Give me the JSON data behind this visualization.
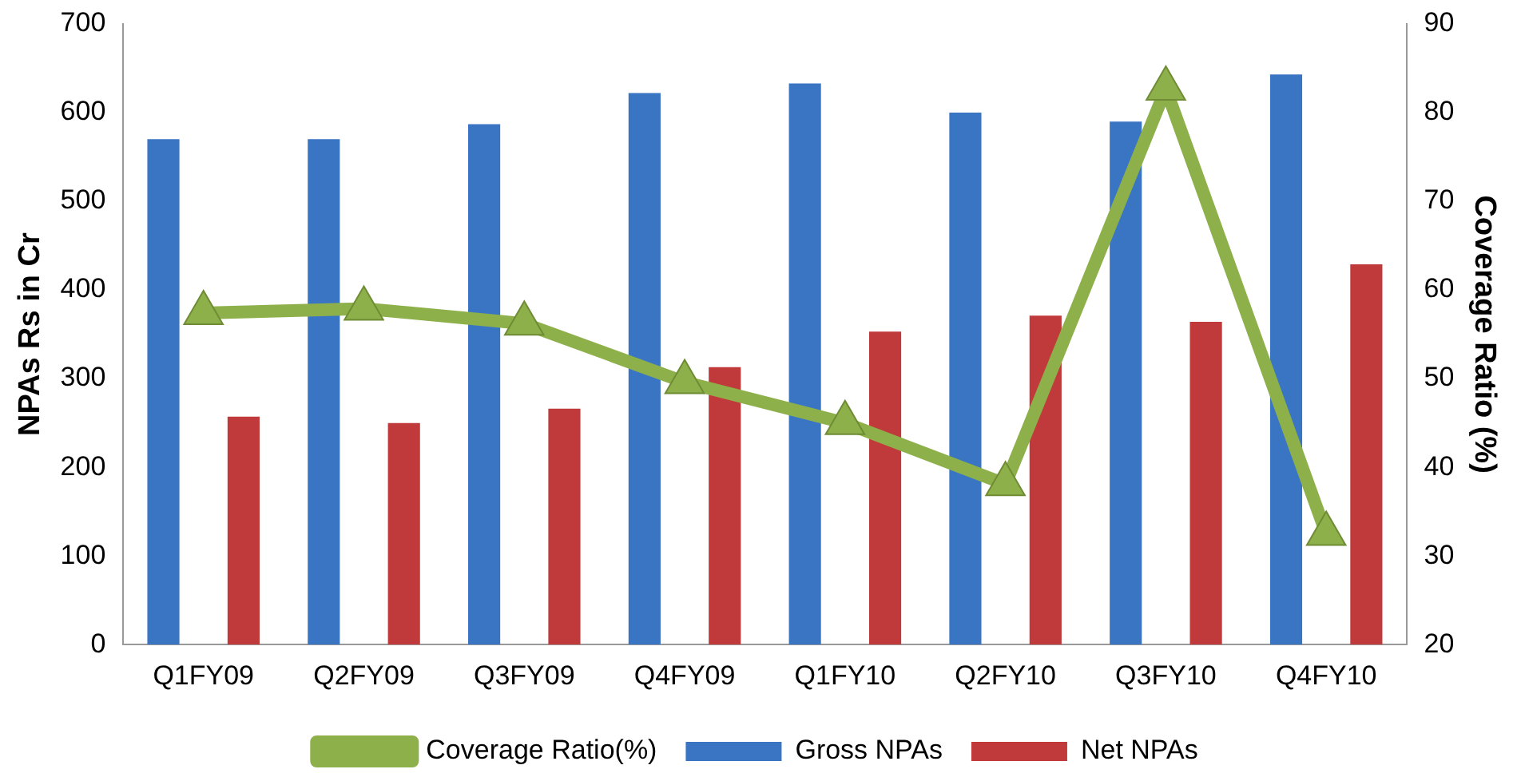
{
  "chart_data": {
    "type": "bar",
    "ylabel": "NPAs Rs in Cr",
    "y2label": "Coverage Ratio (%)",
    "categories": [
      "Q1FY09",
      "Q2FY09",
      "Q3FY09",
      "Q4FY09",
      "Q1FY10",
      "Q2FY10",
      "Q3FY10",
      "Q4FY10"
    ],
    "series": [
      {
        "name": "Gross NPAs",
        "color": "#3a75c4",
        "values": [
          570,
          570,
          587,
          622,
          633,
          600,
          590,
          643
        ]
      },
      {
        "name": "Net NPAs",
        "color": "#c0393b",
        "values": [
          257,
          250,
          266,
          313,
          353,
          371,
          364,
          429
        ]
      },
      {
        "name": "Coverage Ratio(%)",
        "type": "line",
        "axis": "y2",
        "color": "#8db04a",
        "marker": "triangle",
        "values": [
          57.4,
          57.9,
          56.2,
          49.6,
          45,
          38.1,
          82.7,
          32.5
        ]
      }
    ],
    "ylim": [
      0,
      700
    ],
    "yticks": [
      0,
      100,
      200,
      300,
      400,
      500,
      600,
      700
    ],
    "y2lim": [
      20,
      90
    ],
    "y2ticks": [
      20,
      30,
      40,
      50,
      60,
      70,
      80,
      90
    ],
    "grid": false,
    "legend": "bottom"
  }
}
